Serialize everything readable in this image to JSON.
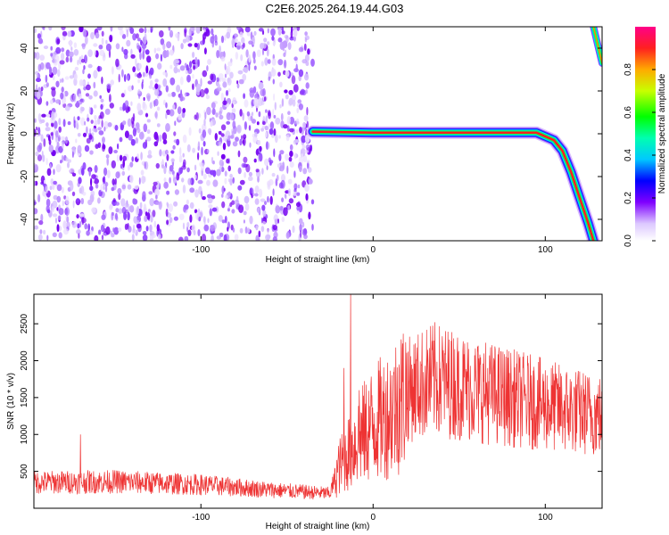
{
  "title": "C2E6.2025.264.19.44.G03",
  "chart_data": [
    {
      "type": "heatmap",
      "xlabel": "Height of straight line (km)",
      "ylabel": "Frequency (Hz)",
      "xlim": [
        -197,
        133
      ],
      "ylim": [
        -50,
        50
      ],
      "xticks": [
        -100,
        0,
        100
      ],
      "xtick_labels": [
        "-100",
        "0",
        "100"
      ],
      "yticks": [
        -40,
        -20,
        0,
        20,
        40
      ],
      "ytick_labels": [
        "-40",
        "-20",
        "0",
        "20",
        "40"
      ],
      "noise_region_x": [
        -197,
        -35
      ],
      "signal_track": [
        {
          "x": -35,
          "y": 1
        },
        {
          "x": 0,
          "y": 0.5
        },
        {
          "x": 50,
          "y": 0.5
        },
        {
          "x": 95,
          "y": 0.5
        },
        {
          "x": 105,
          "y": -3
        },
        {
          "x": 110,
          "y": -8
        },
        {
          "x": 115,
          "y": -18
        },
        {
          "x": 120,
          "y": -30
        },
        {
          "x": 125,
          "y": -42
        },
        {
          "x": 128,
          "y": -50
        }
      ],
      "upper_track": [
        {
          "x": 128,
          "y": 50
        },
        {
          "x": 133,
          "y": 33
        }
      ],
      "colorbar": {
        "label": "Normalized spectral amplitude",
        "range": [
          0,
          1
        ],
        "ticks": [
          0.0,
          0.2,
          0.4,
          0.6,
          0.8
        ],
        "tick_labels": [
          "0.0",
          "0.2",
          "0.4",
          "0.6",
          "0.8"
        ]
      },
      "grid": false
    },
    {
      "type": "line",
      "xlabel": "Height of straight line (km)",
      "ylabel": "SNR (10 * v/v)",
      "xlim": [
        -197,
        133
      ],
      "ylim": [
        0,
        2900
      ],
      "xticks": [
        -100,
        0,
        100
      ],
      "xtick_labels": [
        "-100",
        "0",
        "100"
      ],
      "yticks": [
        500,
        1000,
        1500,
        2000,
        2500
      ],
      "ytick_labels": [
        "500",
        "1000",
        "1500",
        "2000",
        "2500"
      ],
      "series_color": "#ee3333",
      "trend": [
        {
          "x": -197,
          "y": 350
        },
        {
          "x": -150,
          "y": 360
        },
        {
          "x": -100,
          "y": 320
        },
        {
          "x": -60,
          "y": 250
        },
        {
          "x": -25,
          "y": 200
        },
        {
          "x": -20,
          "y": 550
        },
        {
          "x": -10,
          "y": 900
        },
        {
          "x": 0,
          "y": 1150
        },
        {
          "x": 10,
          "y": 1300
        },
        {
          "x": 20,
          "y": 1600
        },
        {
          "x": 35,
          "y": 1750
        },
        {
          "x": 60,
          "y": 1600
        },
        {
          "x": 90,
          "y": 1450
        },
        {
          "x": 110,
          "y": 1350
        },
        {
          "x": 133,
          "y": 1250
        }
      ],
      "spikes": [
        {
          "x": -13,
          "y": 2900
        },
        {
          "x": -17,
          "y": 1900
        },
        {
          "x": -8,
          "y": 1600
        },
        {
          "x": 15,
          "y": 1950
        },
        {
          "x": -170,
          "y": 1000
        },
        {
          "x": 40,
          "y": 2000
        },
        {
          "x": 92,
          "y": 1800
        }
      ],
      "grid": false
    }
  ]
}
